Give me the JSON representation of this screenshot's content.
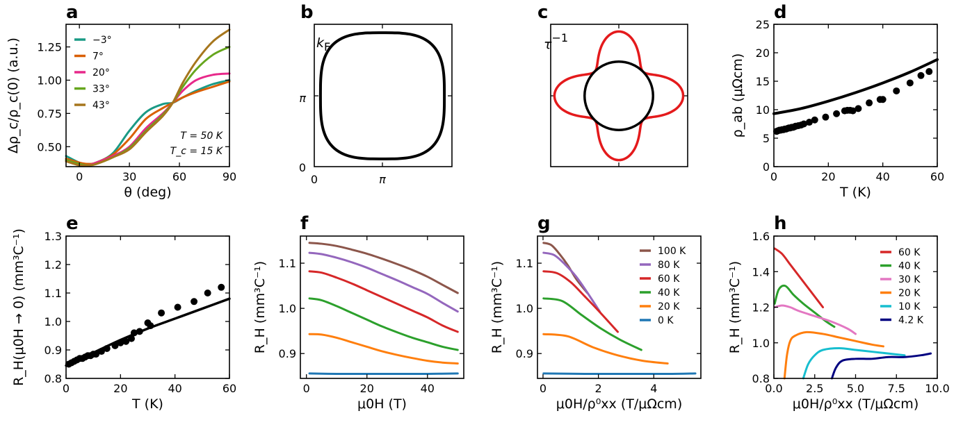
{
  "figure": {
    "panels": [
      "a",
      "b",
      "c",
      "d",
      "e",
      "f",
      "g",
      "h"
    ]
  },
  "chart_data": [
    {
      "panel": "a",
      "type": "line",
      "xlabel": "θ (deg)",
      "ylabel": "Δρ_c/ρ_c(0) (a.u.)",
      "xlim": [
        -8,
        90
      ],
      "ylim": [
        0.35,
        1.42
      ],
      "xticks": [
        0,
        30,
        60,
        90
      ],
      "yticks": [
        0.5,
        0.75,
        1.0,
        1.25
      ],
      "xticklabels": [
        "0",
        "30",
        "60",
        "90"
      ],
      "yticklabels": [
        "0.50",
        "0.75",
        "1.00",
        "1.25"
      ],
      "annotations": [
        "T = 50 K",
        "T_c = 15 K"
      ],
      "legend": "top-left",
      "series": [
        {
          "name": "−3°",
          "color": "#1a9a85",
          "x": [
            -8,
            0,
            5,
            10,
            20,
            30,
            40,
            50,
            56,
            62,
            70,
            80,
            90
          ],
          "y": [
            0.43,
            0.38,
            0.37,
            0.38,
            0.45,
            0.62,
            0.76,
            0.82,
            0.83,
            0.87,
            0.92,
            0.97,
            1.0
          ]
        },
        {
          "name": "7°",
          "color": "#d95f02",
          "x": [
            -8,
            0,
            5,
            10,
            20,
            30,
            40,
            50,
            56,
            62,
            70,
            80,
            90
          ],
          "y": [
            0.41,
            0.38,
            0.37,
            0.38,
            0.44,
            0.56,
            0.71,
            0.79,
            0.83,
            0.87,
            0.91,
            0.95,
            0.99
          ]
        },
        {
          "name": "20°",
          "color": "#e7298a",
          "x": [
            -8,
            0,
            5,
            10,
            20,
            30,
            40,
            50,
            56,
            62,
            70,
            80,
            90
          ],
          "y": [
            0.4,
            0.37,
            0.36,
            0.38,
            0.43,
            0.5,
            0.64,
            0.75,
            0.83,
            0.92,
            1.0,
            1.04,
            1.05
          ]
        },
        {
          "name": "33°",
          "color": "#66a61e",
          "x": [
            -8,
            0,
            5,
            10,
            20,
            30,
            40,
            50,
            56,
            62,
            70,
            80,
            90
          ],
          "y": [
            0.4,
            0.37,
            0.36,
            0.37,
            0.42,
            0.49,
            0.62,
            0.74,
            0.83,
            0.95,
            1.08,
            1.19,
            1.25
          ]
        },
        {
          "name": "43°",
          "color": "#a6761d",
          "x": [
            -8,
            0,
            5,
            10,
            20,
            30,
            40,
            50,
            56,
            62,
            70,
            80,
            90
          ],
          "y": [
            0.39,
            0.36,
            0.36,
            0.37,
            0.42,
            0.48,
            0.61,
            0.73,
            0.83,
            0.98,
            1.14,
            1.29,
            1.38
          ]
        }
      ]
    },
    {
      "panel": "b",
      "type": "line",
      "title": "k_F",
      "xticklabels": [
        "0",
        "π"
      ],
      "yticklabels": [
        "0",
        "π"
      ],
      "series": [
        {
          "name": "Fermi surface",
          "color": "#000000",
          "shape": "superellipse",
          "r": 0.9,
          "n": 3.2
        }
      ]
    },
    {
      "panel": "c",
      "type": "line",
      "title": "τ^−1",
      "series": [
        {
          "name": "isotropic",
          "color": "#000000",
          "shape": "circle",
          "r": 0.5
        },
        {
          "name": "anisotropic",
          "color": "#e41a1c",
          "shape": "rose",
          "r0": 0.72,
          "a": 0.22,
          "m": 4
        }
      ]
    },
    {
      "panel": "d",
      "type": "scatter",
      "xlabel": "T (K)",
      "ylabel": "ρ_ab (μΩcm)",
      "xlim": [
        0,
        60
      ],
      "ylim": [
        0,
        25
      ],
      "xticks": [
        0,
        20,
        40,
        60
      ],
      "yticks": [
        0,
        5,
        10,
        15,
        20,
        25
      ],
      "xticklabels": [
        "0",
        "20",
        "40",
        "60"
      ],
      "yticklabels": [
        "0",
        "5",
        "10",
        "15",
        "20",
        "25"
      ],
      "series": [
        {
          "name": "model",
          "kind": "line",
          "color": "#000000",
          "x": [
            0,
            10,
            20,
            30,
            40,
            50,
            60
          ],
          "y": [
            9.3,
            10.2,
            11.5,
            13.0,
            14.7,
            16.6,
            18.8
          ]
        },
        {
          "name": "data",
          "kind": "points",
          "color": "#000000",
          "x": [
            1,
            1.5,
            2,
            2.5,
            3,
            3.5,
            4,
            4.5,
            5,
            5.5,
            6,
            6.5,
            7,
            7.5,
            8,
            9,
            10,
            11,
            13,
            15,
            19,
            23,
            26,
            27,
            28,
            29,
            31,
            35,
            39,
            40,
            45,
            50,
            54,
            57
          ],
          "y": [
            6.2,
            6.3,
            6.4,
            6.4,
            6.5,
            6.5,
            6.6,
            6.6,
            6.7,
            6.8,
            6.8,
            6.9,
            6.9,
            7.0,
            7.1,
            7.2,
            7.3,
            7.5,
            7.8,
            8.2,
            8.7,
            9.3,
            9.8,
            9.9,
            9.9,
            9.8,
            10.2,
            11.2,
            11.8,
            11.8,
            13.3,
            14.7,
            16.0,
            16.7
          ]
        }
      ]
    },
    {
      "panel": "e",
      "type": "scatter",
      "xlabel": "T (K)",
      "ylabel": "R_H(μ0H → 0) (mm³C⁻¹)",
      "xlim": [
        0,
        60
      ],
      "ylim": [
        0.8,
        1.3
      ],
      "xticks": [
        0,
        20,
        40,
        60
      ],
      "yticks": [
        0.8,
        0.9,
        1.0,
        1.1,
        1.2,
        1.3
      ],
      "xticklabels": [
        "0",
        "20",
        "40",
        "60"
      ],
      "yticklabels": [
        "0.8",
        "0.9",
        "1.0",
        "1.1",
        "1.2",
        "1.3"
      ],
      "series": [
        {
          "name": "model",
          "kind": "line",
          "color": "#000000",
          "x": [
            0,
            10,
            20,
            30,
            40,
            50,
            60
          ],
          "y": [
            0.845,
            0.89,
            0.935,
            0.975,
            1.01,
            1.045,
            1.08
          ]
        },
        {
          "name": "data",
          "kind": "points",
          "color": "#000000",
          "x": [
            1,
            2,
            3,
            4,
            5,
            6,
            7,
            8,
            9,
            10,
            11,
            13,
            15,
            18,
            20,
            22,
            24,
            25,
            27,
            30,
            31,
            35,
            41,
            47,
            52,
            57
          ],
          "y": [
            0.85,
            0.855,
            0.86,
            0.865,
            0.87,
            0.87,
            0.875,
            0.88,
            0.88,
            0.885,
            0.885,
            0.895,
            0.905,
            0.915,
            0.925,
            0.93,
            0.94,
            0.96,
            0.965,
            0.995,
            0.985,
            1.03,
            1.05,
            1.07,
            1.1,
            1.12
          ]
        }
      ]
    },
    {
      "panel": "f",
      "type": "line",
      "xlabel": "μ0H (T)",
      "ylabel": "R_H (mm³C⁻¹)",
      "xlim": [
        -2,
        52
      ],
      "ylim": [
        0.845,
        1.16
      ],
      "xticks": [
        0,
        20,
        40
      ],
      "yticks": [
        0.9,
        1.0,
        1.1
      ],
      "xticklabels": [
        "0",
        "20",
        "40"
      ],
      "yticklabels": [
        "0.9",
        "1.0",
        "1.1"
      ],
      "series": [
        {
          "name": "0 K",
          "color": "#1f77b4",
          "x": [
            1,
            10,
            20,
            30,
            40,
            50
          ],
          "y": [
            0.856,
            0.855,
            0.855,
            0.855,
            0.855,
            0.856
          ]
        },
        {
          "name": "20 K",
          "color": "#ff7f0e",
          "x": [
            1,
            5,
            10,
            15,
            20,
            25,
            30,
            35,
            40,
            45,
            50
          ],
          "y": [
            0.943,
            0.942,
            0.935,
            0.925,
            0.915,
            0.905,
            0.897,
            0.89,
            0.884,
            0.88,
            0.878
          ]
        },
        {
          "name": "40 K",
          "color": "#2ca02c",
          "x": [
            1,
            5,
            10,
            15,
            20,
            25,
            30,
            35,
            40,
            45,
            50
          ],
          "y": [
            1.022,
            1.018,
            1.005,
            0.99,
            0.975,
            0.96,
            0.947,
            0.935,
            0.925,
            0.915,
            0.908
          ]
        },
        {
          "name": "60 K",
          "color": "#d62728",
          "x": [
            1,
            5,
            10,
            15,
            20,
            25,
            30,
            35,
            40,
            45,
            50
          ],
          "y": [
            1.082,
            1.079,
            1.068,
            1.055,
            1.04,
            1.025,
            1.01,
            0.995,
            0.98,
            0.962,
            0.948
          ]
        },
        {
          "name": "80 K",
          "color": "#9467bd",
          "x": [
            1,
            5,
            10,
            15,
            20,
            25,
            30,
            35,
            40,
            45,
            50
          ],
          "y": [
            1.123,
            1.12,
            1.112,
            1.102,
            1.09,
            1.076,
            1.062,
            1.047,
            1.032,
            1.012,
            0.993
          ]
        },
        {
          "name": "100 K",
          "color": "#8c564b",
          "x": [
            1,
            5,
            10,
            15,
            20,
            25,
            30,
            35,
            40,
            45,
            50
          ],
          "y": [
            1.145,
            1.143,
            1.138,
            1.13,
            1.121,
            1.11,
            1.098,
            1.085,
            1.07,
            1.052,
            1.034
          ]
        }
      ]
    },
    {
      "panel": "g",
      "type": "line",
      "xlabel": "μ0H/ρ⁰xx (T/μΩcm)",
      "ylabel": "R_H (mm³C⁻¹)",
      "xlim": [
        -0.2,
        5.7
      ],
      "ylim": [
        0.845,
        1.16
      ],
      "xticks": [
        0,
        2,
        4
      ],
      "yticks": [
        0.9,
        1.0,
        1.1
      ],
      "xticklabels": [
        "0",
        "2",
        "4"
      ],
      "yticklabels": [
        "0.9",
        "1.0",
        "1.1"
      ],
      "legend": "top-right",
      "series": [
        {
          "name": "100 K",
          "color": "#8c564b",
          "x": [
            0.02,
            0.3,
            0.6,
            0.9,
            1.2,
            1.6
          ],
          "y": [
            1.145,
            1.14,
            1.12,
            1.095,
            1.065,
            1.034
          ]
        },
        {
          "name": "80 K",
          "color": "#9467bd",
          "x": [
            0.02,
            0.4,
            0.8,
            1.2,
            1.6,
            2.05
          ],
          "y": [
            1.123,
            1.118,
            1.097,
            1.07,
            1.035,
            0.993
          ]
        },
        {
          "name": "60 K",
          "color": "#d62728",
          "x": [
            0.02,
            0.5,
            1.0,
            1.5,
            2.0,
            2.7
          ],
          "y": [
            1.082,
            1.078,
            1.058,
            1.027,
            0.995,
            0.948
          ]
        },
        {
          "name": "40 K",
          "color": "#2ca02c",
          "x": [
            0.02,
            0.7,
            1.4,
            2.1,
            2.8,
            3.55
          ],
          "y": [
            1.022,
            1.016,
            0.985,
            0.955,
            0.93,
            0.908
          ]
        },
        {
          "name": "20 K",
          "color": "#ff7f0e",
          "x": [
            0.02,
            0.9,
            1.8,
            2.7,
            3.6,
            4.5
          ],
          "y": [
            0.943,
            0.938,
            0.914,
            0.896,
            0.884,
            0.878
          ]
        },
        {
          "name": "0 K",
          "color": "#1f77b4",
          "x": [
            0.02,
            1.5,
            3.0,
            4.5,
            5.5
          ],
          "y": [
            0.856,
            0.855,
            0.855,
            0.855,
            0.856
          ]
        }
      ]
    },
    {
      "panel": "h",
      "type": "line",
      "xlabel": "μ0H/ρ⁰xx (T/μΩcm)",
      "ylabel": "R_H (mm³C⁻¹)",
      "xlim": [
        0,
        10
      ],
      "ylim": [
        0.8,
        1.6
      ],
      "xticks": [
        0,
        2.5,
        5,
        7.5,
        10
      ],
      "yticks": [
        0.8,
        1.0,
        1.2,
        1.4,
        1.6
      ],
      "xticklabels": [
        "0.0",
        "2.5",
        "5.0",
        "7.5",
        "10.0"
      ],
      "yticklabels": [
        "0.8",
        "1.0",
        "1.2",
        "1.4",
        "1.6"
      ],
      "legend": "top-right",
      "series": [
        {
          "name": "60 K",
          "color": "#d62728",
          "x": [
            0.05,
            0.5,
            1.0,
            1.5,
            2.0,
            2.5,
            3.0
          ],
          "y": [
            1.53,
            1.5,
            1.44,
            1.38,
            1.32,
            1.26,
            1.2
          ]
        },
        {
          "name": "40 K",
          "color": "#2ca02c",
          "x": [
            0.05,
            0.3,
            0.7,
            1.2,
            1.8,
            2.5,
            3.2,
            3.7
          ],
          "y": [
            1.22,
            1.3,
            1.32,
            1.27,
            1.22,
            1.17,
            1.12,
            1.09
          ]
        },
        {
          "name": "30 K",
          "color": "#e377c2",
          "x": [
            0.05,
            0.5,
            1.0,
            1.5,
            2.5,
            3.5,
            4.5,
            5.0
          ],
          "y": [
            1.2,
            1.21,
            1.2,
            1.18,
            1.15,
            1.12,
            1.08,
            1.05
          ]
        },
        {
          "name": "20 K",
          "color": "#ff7f0e",
          "x": [
            0.65,
            0.8,
            1.0,
            1.3,
            2.0,
            3.0,
            4.0,
            5.0,
            6.0,
            6.7
          ],
          "y": [
            0.8,
            0.93,
            1.01,
            1.04,
            1.06,
            1.05,
            1.03,
            1.01,
            0.99,
            0.98
          ]
        },
        {
          "name": "10 K",
          "color": "#17becf",
          "x": [
            1.8,
            2.1,
            2.5,
            3.0,
            4.0,
            5.0,
            6.0,
            7.0,
            8.0
          ],
          "y": [
            0.8,
            0.88,
            0.93,
            0.96,
            0.97,
            0.96,
            0.95,
            0.94,
            0.93
          ]
        },
        {
          "name": "4.2 K",
          "color": "#000080",
          "x": [
            3.55,
            3.8,
            4.2,
            5.0,
            6.0,
            7.0,
            8.0,
            9.0,
            9.6
          ],
          "y": [
            0.8,
            0.86,
            0.9,
            0.91,
            0.91,
            0.92,
            0.92,
            0.93,
            0.94
          ]
        }
      ]
    }
  ],
  "figure_text": {
    "a": {
      "label": "a",
      "anno1": "T = 50 K",
      "anno2": "T_c = 15 K"
    },
    "b": {
      "label": "b",
      "title": "k",
      "title_sub": "F",
      "x0": "0",
      "xpi": "π",
      "y0": "0",
      "ypi": "π"
    },
    "c": {
      "label": "c",
      "title": "τ",
      "title_sup": "−1"
    },
    "d": {
      "label": "d"
    },
    "e": {
      "label": "e"
    },
    "f": {
      "label": "f"
    },
    "g": {
      "label": "g"
    },
    "h": {
      "label": "h"
    }
  }
}
